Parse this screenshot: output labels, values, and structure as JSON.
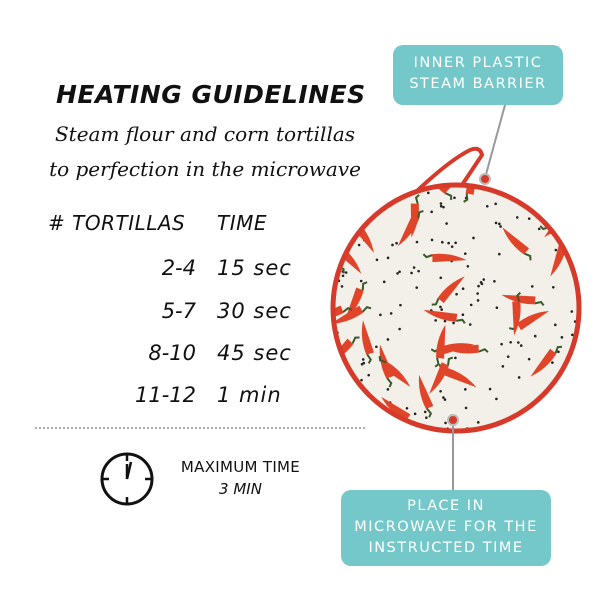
{
  "heading": {
    "title": "HEATING GUIDELINES",
    "subtitle_line1": "Steam flour and corn tortillas",
    "subtitle_line2": "to perfection in the microwave"
  },
  "table": {
    "headers": [
      "# TORTILLAS",
      "TIME"
    ],
    "rows": [
      {
        "count": "2-4",
        "time": "15 sec"
      },
      {
        "count": "5-7",
        "time": "30 sec"
      },
      {
        "count": "8-10",
        "time": "45 sec"
      },
      {
        "count": "11-12",
        "time": "1 min"
      }
    ]
  },
  "max_time": {
    "icon": "clock-icon",
    "label": "MAXIMUM TIME",
    "value": "3 MIN"
  },
  "callouts": {
    "top_line1": "INNER PLASTIC",
    "top_line2": "STEAM BARRIER",
    "bottom_line1": "PLACE IN",
    "bottom_line2": "MICROWAVE FOR THE",
    "bottom_line3": "INSTRUCTED TIME"
  },
  "colors": {
    "callout": "#74c8c9",
    "trim": "#d63a2a",
    "chili": "#e0452a",
    "fabric": "#f3efe9"
  }
}
